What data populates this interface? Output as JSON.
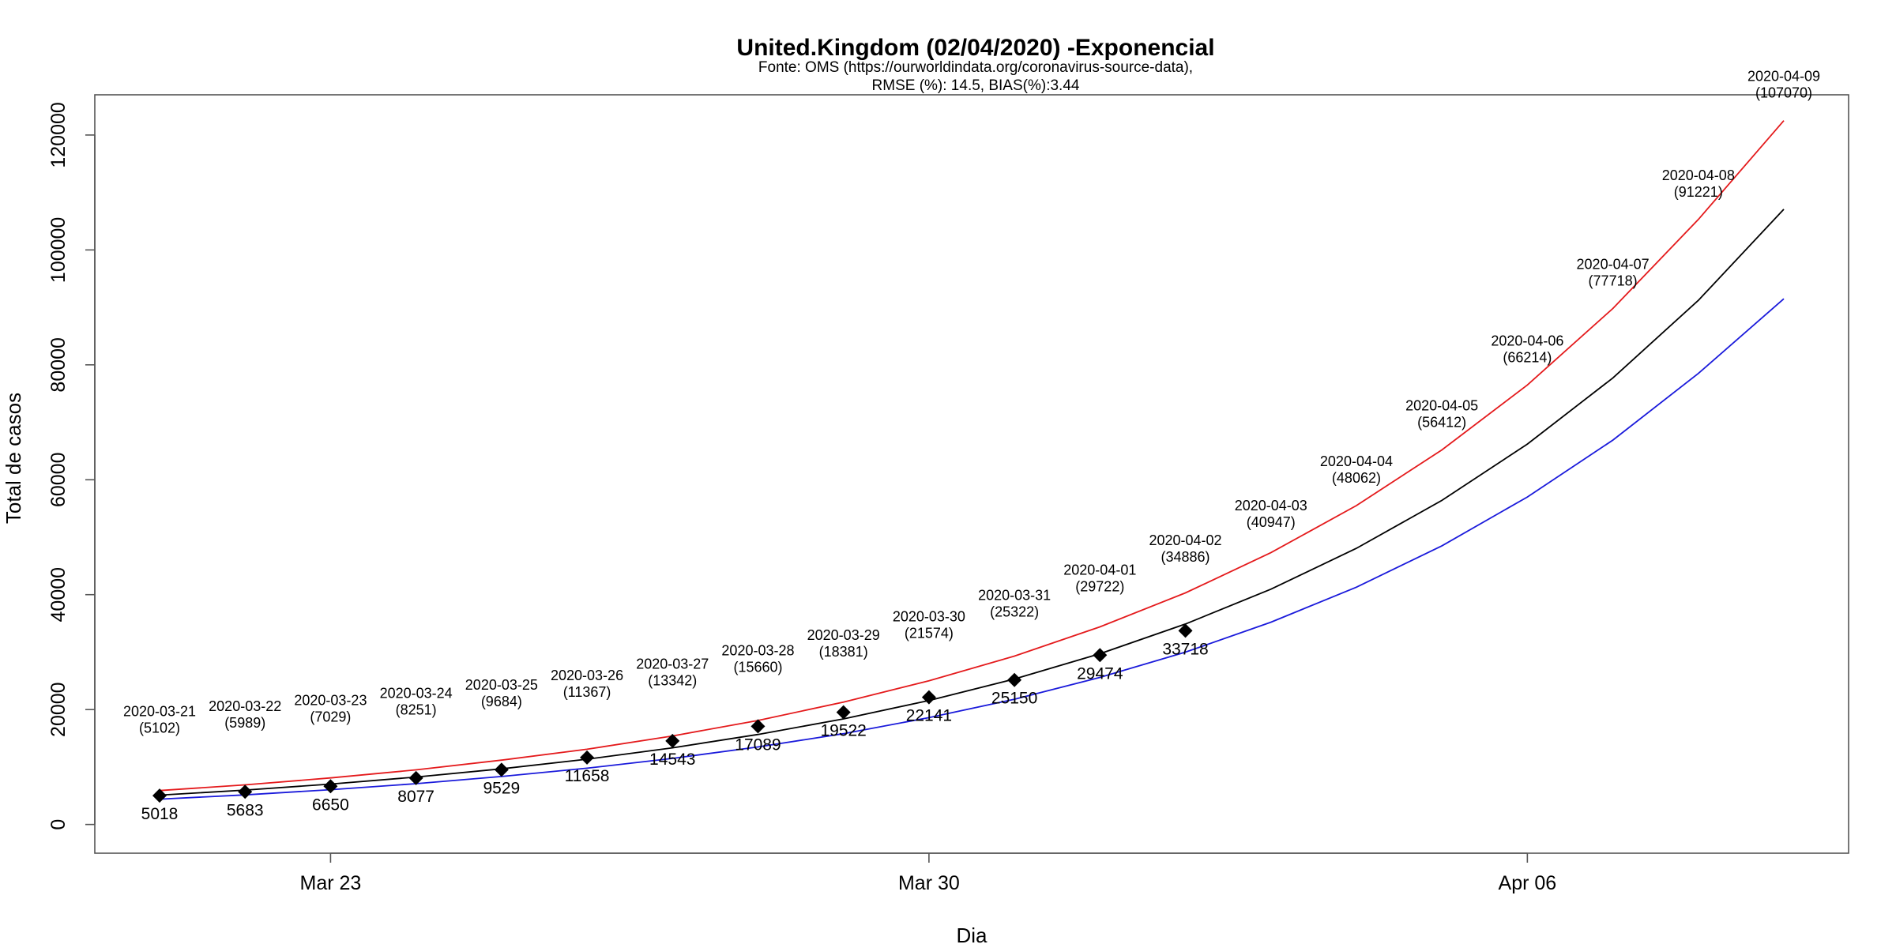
{
  "chart_data": {
    "type": "line",
    "title": "United.Kingdom (02/04/2020) -Exponencial",
    "subtitle_line1": "Fonte: OMS (https://ourworldindata.org/coronavirus-source-data),",
    "subtitle_line2": "RMSE (%): 14.5, BIAS(%):3.44",
    "xlabel": "Dia",
    "ylabel": "Total de casos",
    "ylim": [
      -5000,
      127000
    ],
    "y_ticks": [
      0,
      20000,
      40000,
      60000,
      80000,
      100000,
      120000
    ],
    "y_tick_labels": [
      "0",
      "20000",
      "40000",
      "60000",
      "80000",
      "100000",
      "120000"
    ],
    "x_ticks": [
      {
        "day": "2020-03-23",
        "label": "Mar 23"
      },
      {
        "day": "2020-03-30",
        "label": "Mar 30"
      },
      {
        "day": "2020-04-06",
        "label": "Apr 06"
      }
    ],
    "x": [
      "2020-03-21",
      "2020-03-22",
      "2020-03-23",
      "2020-03-24",
      "2020-03-25",
      "2020-03-26",
      "2020-03-27",
      "2020-03-28",
      "2020-03-29",
      "2020-03-30",
      "2020-03-31",
      "2020-04-01",
      "2020-04-02",
      "2020-04-03",
      "2020-04-04",
      "2020-04-05",
      "2020-04-06",
      "2020-04-07",
      "2020-04-08",
      "2020-04-09"
    ],
    "predicted_labels": [
      "(5102)",
      "(5989)",
      "(7029)",
      "(8251)",
      "(9684)",
      "(11367)",
      "(13342)",
      "(15660)",
      "(18381)",
      "(21574)",
      "(25322)",
      "(29722)",
      "(34886)",
      "(40947)",
      "(48062)",
      "(56412)",
      "(66214)",
      "(77718)",
      "(91221)",
      "(107070)"
    ],
    "series": [
      {
        "color": "#000000",
        "values": [
          5102,
          5989,
          7029,
          8251,
          9684,
          11367,
          13342,
          15660,
          18381,
          21574,
          25322,
          29722,
          34886,
          40947,
          48062,
          56412,
          66214,
          77718,
          91221,
          107070
        ]
      },
      {
        "color": "#e41a1c",
        "values": [
          5900,
          6900,
          8100,
          9500,
          11200,
          13100,
          15400,
          18100,
          21300,
          25000,
          29300,
          34400,
          40300,
          47300,
          55500,
          65200,
          76500,
          89800,
          105300,
          122500
        ]
      },
      {
        "color": "#1a1adb",
        "values": [
          4400,
          5150,
          6050,
          7100,
          8350,
          9800,
          11500,
          13500,
          15800,
          18600,
          21800,
          25600,
          30000,
          35200,
          41300,
          48500,
          57000,
          66900,
          78500,
          91500
        ]
      }
    ],
    "observed": {
      "x": [
        "2020-03-21",
        "2020-03-22",
        "2020-03-23",
        "2020-03-24",
        "2020-03-25",
        "2020-03-26",
        "2020-03-27",
        "2020-03-28",
        "2020-03-29",
        "2020-03-30",
        "2020-03-31",
        "2020-04-01",
        "2020-04-02"
      ],
      "values": [
        5018,
        5683,
        6650,
        8077,
        9529,
        11658,
        14543,
        17089,
        19522,
        22141,
        25150,
        29474,
        33718
      ],
      "labels": [
        "5018",
        "5683",
        "6650",
        "8077",
        "9529",
        "11658",
        "14543",
        "17089",
        "19522",
        "22141",
        "25150",
        "29474",
        "33718"
      ]
    }
  }
}
